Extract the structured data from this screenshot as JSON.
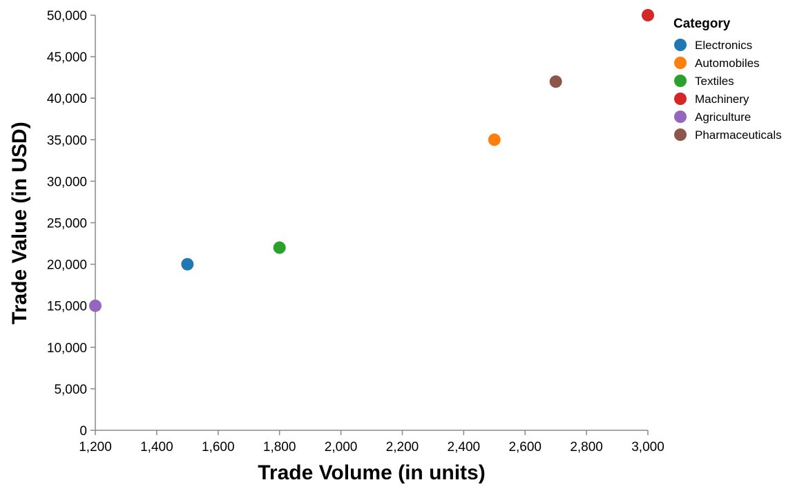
{
  "chart_data": {
    "type": "scatter",
    "xlabel": "Trade Volume (in units)",
    "ylabel": "Trade Value (in USD)",
    "xlim": [
      1200,
      3000
    ],
    "ylim": [
      0,
      50000
    ],
    "x_ticks": [
      1200,
      1400,
      1600,
      1800,
      2000,
      2200,
      2400,
      2600,
      2800,
      3000
    ],
    "y_ticks": [
      0,
      5000,
      10000,
      15000,
      20000,
      25000,
      30000,
      35000,
      40000,
      45000,
      50000
    ],
    "x_tick_labels": [
      "1,200",
      "1,400",
      "1,600",
      "1,800",
      "2,000",
      "2,200",
      "2,400",
      "2,600",
      "2,800",
      "3,000"
    ],
    "y_tick_labels": [
      "0",
      "5,000",
      "10,000",
      "15,000",
      "20,000",
      "25,000",
      "30,000",
      "35,000",
      "40,000",
      "45,000",
      "50,000"
    ],
    "grid": false,
    "legend": {
      "title": "Category",
      "placement": "top-right"
    },
    "points": [
      {
        "category": "Electronics",
        "x": 1500,
        "y": 20000,
        "color": "#1f77b4"
      },
      {
        "category": "Automobiles",
        "x": 2500,
        "y": 35000,
        "color": "#ff7f0e"
      },
      {
        "category": "Textiles",
        "x": 1800,
        "y": 22000,
        "color": "#2ca02c"
      },
      {
        "category": "Machinery",
        "x": 3000,
        "y": 50000,
        "color": "#d62728"
      },
      {
        "category": "Agriculture",
        "x": 1200,
        "y": 15000,
        "color": "#9467bd"
      },
      {
        "category": "Pharmaceuticals",
        "x": 2700,
        "y": 42000,
        "color": "#8c564b"
      }
    ]
  }
}
